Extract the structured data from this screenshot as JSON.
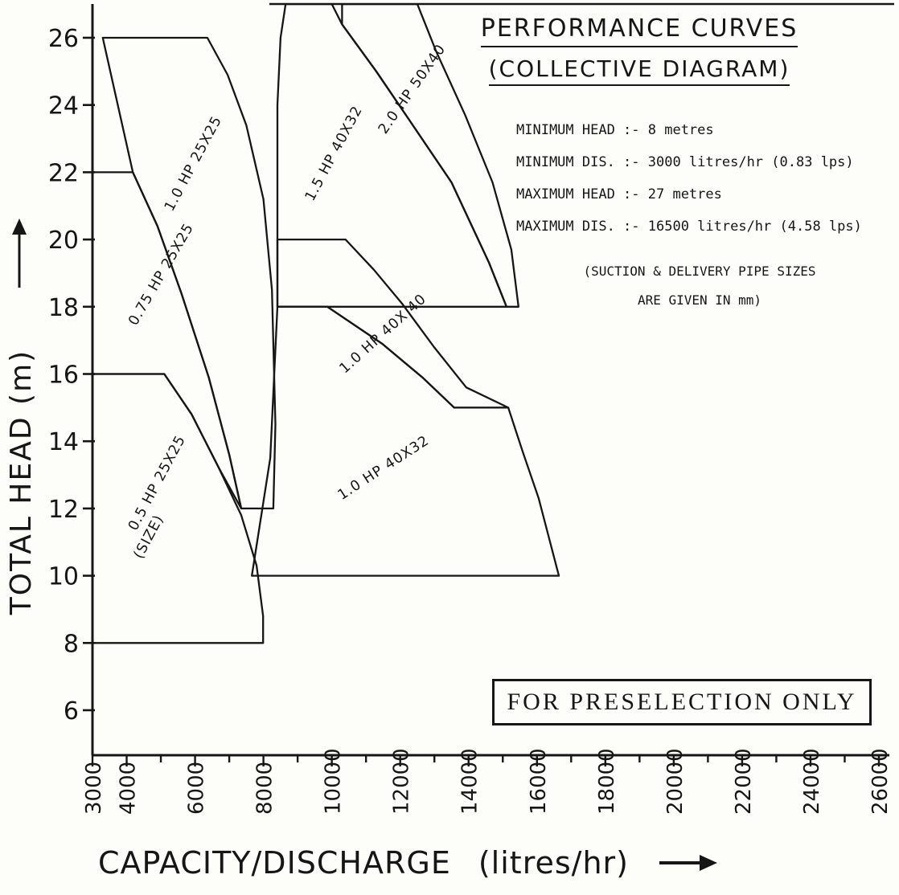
{
  "title": {
    "line1": "PERFORMANCE CURVES",
    "line2": "(COLLECTIVE DIAGRAM)"
  },
  "notes": {
    "lines": [
      "MINIMUM HEAD :- 8 metres",
      "MINIMUM DIS. :- 3000 litres/hr (0.83 lps)",
      "MAXIMUM HEAD :- 27 metres",
      "MAXIMUM DIS. :- 16500 litres/hr (4.58 lps)"
    ],
    "pipe_note_line1": "(SUCTION & DELIVERY PIPE SIZES",
    "pipe_note_line2": "ARE GIVEN IN mm)"
  },
  "preselection_box": {
    "label": "FOR PRESELECTION ONLY"
  },
  "chart_data": {
    "type": "area",
    "title": "PERFORMANCE CURVES (COLLECTIVE DIAGRAM)",
    "xlabel": "CAPACITY/DISCHARGE (litres/hr)",
    "xlabel_main": "CAPACITY/DISCHARGE",
    "xlabel_unit": "(litres/hr)",
    "ylabel": "TOTAL HEAD (m)",
    "xlim": [
      3000,
      26000
    ],
    "ylim": [
      5,
      27
    ],
    "x_tick_minor_step": 1000,
    "x_ticks_labeled": [
      3000,
      4000,
      6000,
      8000,
      10000,
      12000,
      14000,
      16000,
      18000,
      20000,
      22000,
      24000,
      26000
    ],
    "y_ticks": [
      26,
      24,
      22,
      20,
      18,
      16,
      14,
      12,
      10,
      8,
      6
    ],
    "grid": false,
    "legend": "none",
    "ink": "#161616",
    "regions": [
      {
        "name": "0.5 HP 25X25 (SIZE)",
        "points": [
          [
            3000,
            16
          ],
          [
            5100,
            16
          ],
          [
            5900,
            14.8
          ],
          [
            6700,
            13.2
          ],
          [
            7350,
            11.8
          ],
          [
            7800,
            10.3
          ],
          [
            7990,
            8.8
          ],
          [
            7990,
            8
          ],
          [
            3000,
            8
          ]
        ]
      },
      {
        "name": "0.75 HP 25X25",
        "points": [
          [
            3000,
            22
          ],
          [
            4180,
            22
          ],
          [
            4900,
            20.4
          ],
          [
            5600,
            18.4
          ],
          [
            6400,
            15.9
          ],
          [
            7000,
            13.6
          ],
          [
            7350,
            12
          ],
          [
            6700,
            13.2
          ],
          [
            5900,
            14.8
          ],
          [
            5100,
            16
          ],
          [
            3000,
            16
          ]
        ]
      },
      {
        "name": "1.0 HP 25X25",
        "points": [
          [
            3300,
            26
          ],
          [
            6360,
            26
          ],
          [
            6950,
            24.9
          ],
          [
            7500,
            23.4
          ],
          [
            8000,
            21.2
          ],
          [
            8250,
            18.5
          ],
          [
            8350,
            14.5
          ],
          [
            8290,
            12
          ],
          [
            7350,
            12
          ],
          [
            7000,
            13.6
          ],
          [
            6400,
            15.9
          ],
          [
            5600,
            18.4
          ],
          [
            4900,
            20.4
          ],
          [
            4180,
            22
          ]
        ]
      },
      {
        "name": "1.5 HP 40X32",
        "points": [
          [
            8410,
            18
          ],
          [
            8410,
            24
          ],
          [
            8500,
            26
          ],
          [
            8650,
            27
          ],
          [
            10000,
            27
          ],
          [
            10300,
            26.4
          ],
          [
            11300,
            25.0
          ],
          [
            12300,
            23.5
          ],
          [
            13500,
            21.7
          ],
          [
            14600,
            19.3
          ],
          [
            15110,
            18
          ]
        ]
      },
      {
        "name": "2.0 HP 50X40",
        "points": [
          [
            10300,
            27
          ],
          [
            12500,
            27
          ],
          [
            13050,
            25.6
          ],
          [
            13900,
            23.7
          ],
          [
            14700,
            21.7
          ],
          [
            15250,
            19.7
          ],
          [
            15460,
            18
          ],
          [
            15110,
            18
          ],
          [
            14600,
            19.3
          ],
          [
            13500,
            21.7
          ],
          [
            12300,
            23.5
          ],
          [
            11300,
            25.0
          ],
          [
            10300,
            26.4
          ]
        ]
      },
      {
        "name": "1.0 HP 40X 40",
        "points": [
          [
            8410,
            20
          ],
          [
            10400,
            20
          ],
          [
            11230,
            19.1
          ],
          [
            12050,
            18.1
          ],
          [
            12990,
            16.8
          ],
          [
            13930,
            15.6
          ],
          [
            15160,
            15
          ],
          [
            13580,
            15
          ],
          [
            12650,
            15.9
          ],
          [
            11470,
            16.9
          ],
          [
            9870,
            18
          ],
          [
            8410,
            18
          ]
        ]
      },
      {
        "name": "1.0 HP 40X32",
        "points": [
          [
            8410,
            18
          ],
          [
            9870,
            18
          ],
          [
            11470,
            16.9
          ],
          [
            12650,
            15.9
          ],
          [
            13580,
            15
          ],
          [
            15160,
            15
          ],
          [
            15580,
            13.7
          ],
          [
            16050,
            12.3
          ],
          [
            16640,
            10
          ],
          [
            7660,
            10
          ],
          [
            8200,
            13.5
          ]
        ]
      }
    ],
    "region_labels": [
      {
        "text": "1.0 HP 25X25",
        "x": 6060,
        "y": 22.2,
        "rot": -62
      },
      {
        "text": "0.75 HP 25X25",
        "x": 5120,
        "y": 18.9,
        "rot": -60
      },
      {
        "text": "0.5 HP 25X25",
        "x": 5000,
        "y": 12.7,
        "rot": -62
      },
      {
        "text": "(SIZE)",
        "x": 4760,
        "y": 11.1,
        "rot": -62
      },
      {
        "text": "1.5 HP 40X32",
        "x": 10170,
        "y": 22.5,
        "rot": -62
      },
      {
        "text": "2.0 HP 50X40",
        "x": 12450,
        "y": 24.4,
        "rot": -55
      },
      {
        "text": "1.0 HP 40X 40",
        "x": 11580,
        "y": 17.1,
        "rot": -42
      },
      {
        "text": "1.0 HP 40X32",
        "x": 11580,
        "y": 13.1,
        "rot": -33
      }
    ]
  }
}
